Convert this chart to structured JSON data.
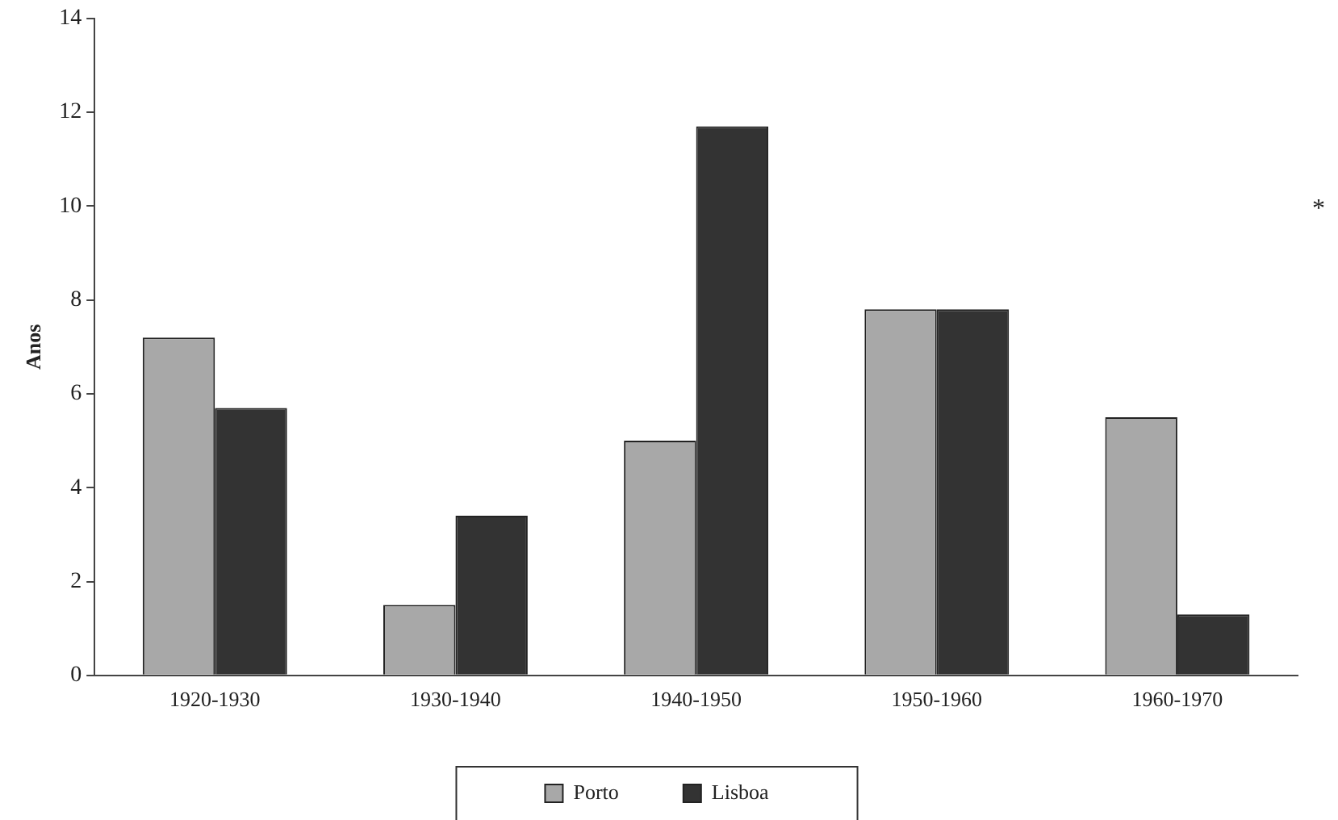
{
  "chart_data": {
    "type": "bar",
    "ylabel": "Anos",
    "categories": [
      "1920-1930",
      "1930-1940",
      "1940-1950",
      "1950-1960",
      "1960-1970"
    ],
    "series": [
      {
        "name": "Porto",
        "color": "#a8a8a8",
        "values": [
          7.2,
          1.5,
          5.0,
          7.8,
          5.5
        ]
      },
      {
        "name": "Lisboa",
        "color": "#333333",
        "values": [
          5.7,
          3.4,
          11.7,
          7.8,
          1.3
        ]
      }
    ],
    "ylim": [
      0,
      14
    ],
    "yticks": [
      0,
      2,
      4,
      6,
      8,
      10,
      12,
      14
    ],
    "grid": false,
    "legend": "bottom",
    "annotations": [
      "*"
    ]
  }
}
